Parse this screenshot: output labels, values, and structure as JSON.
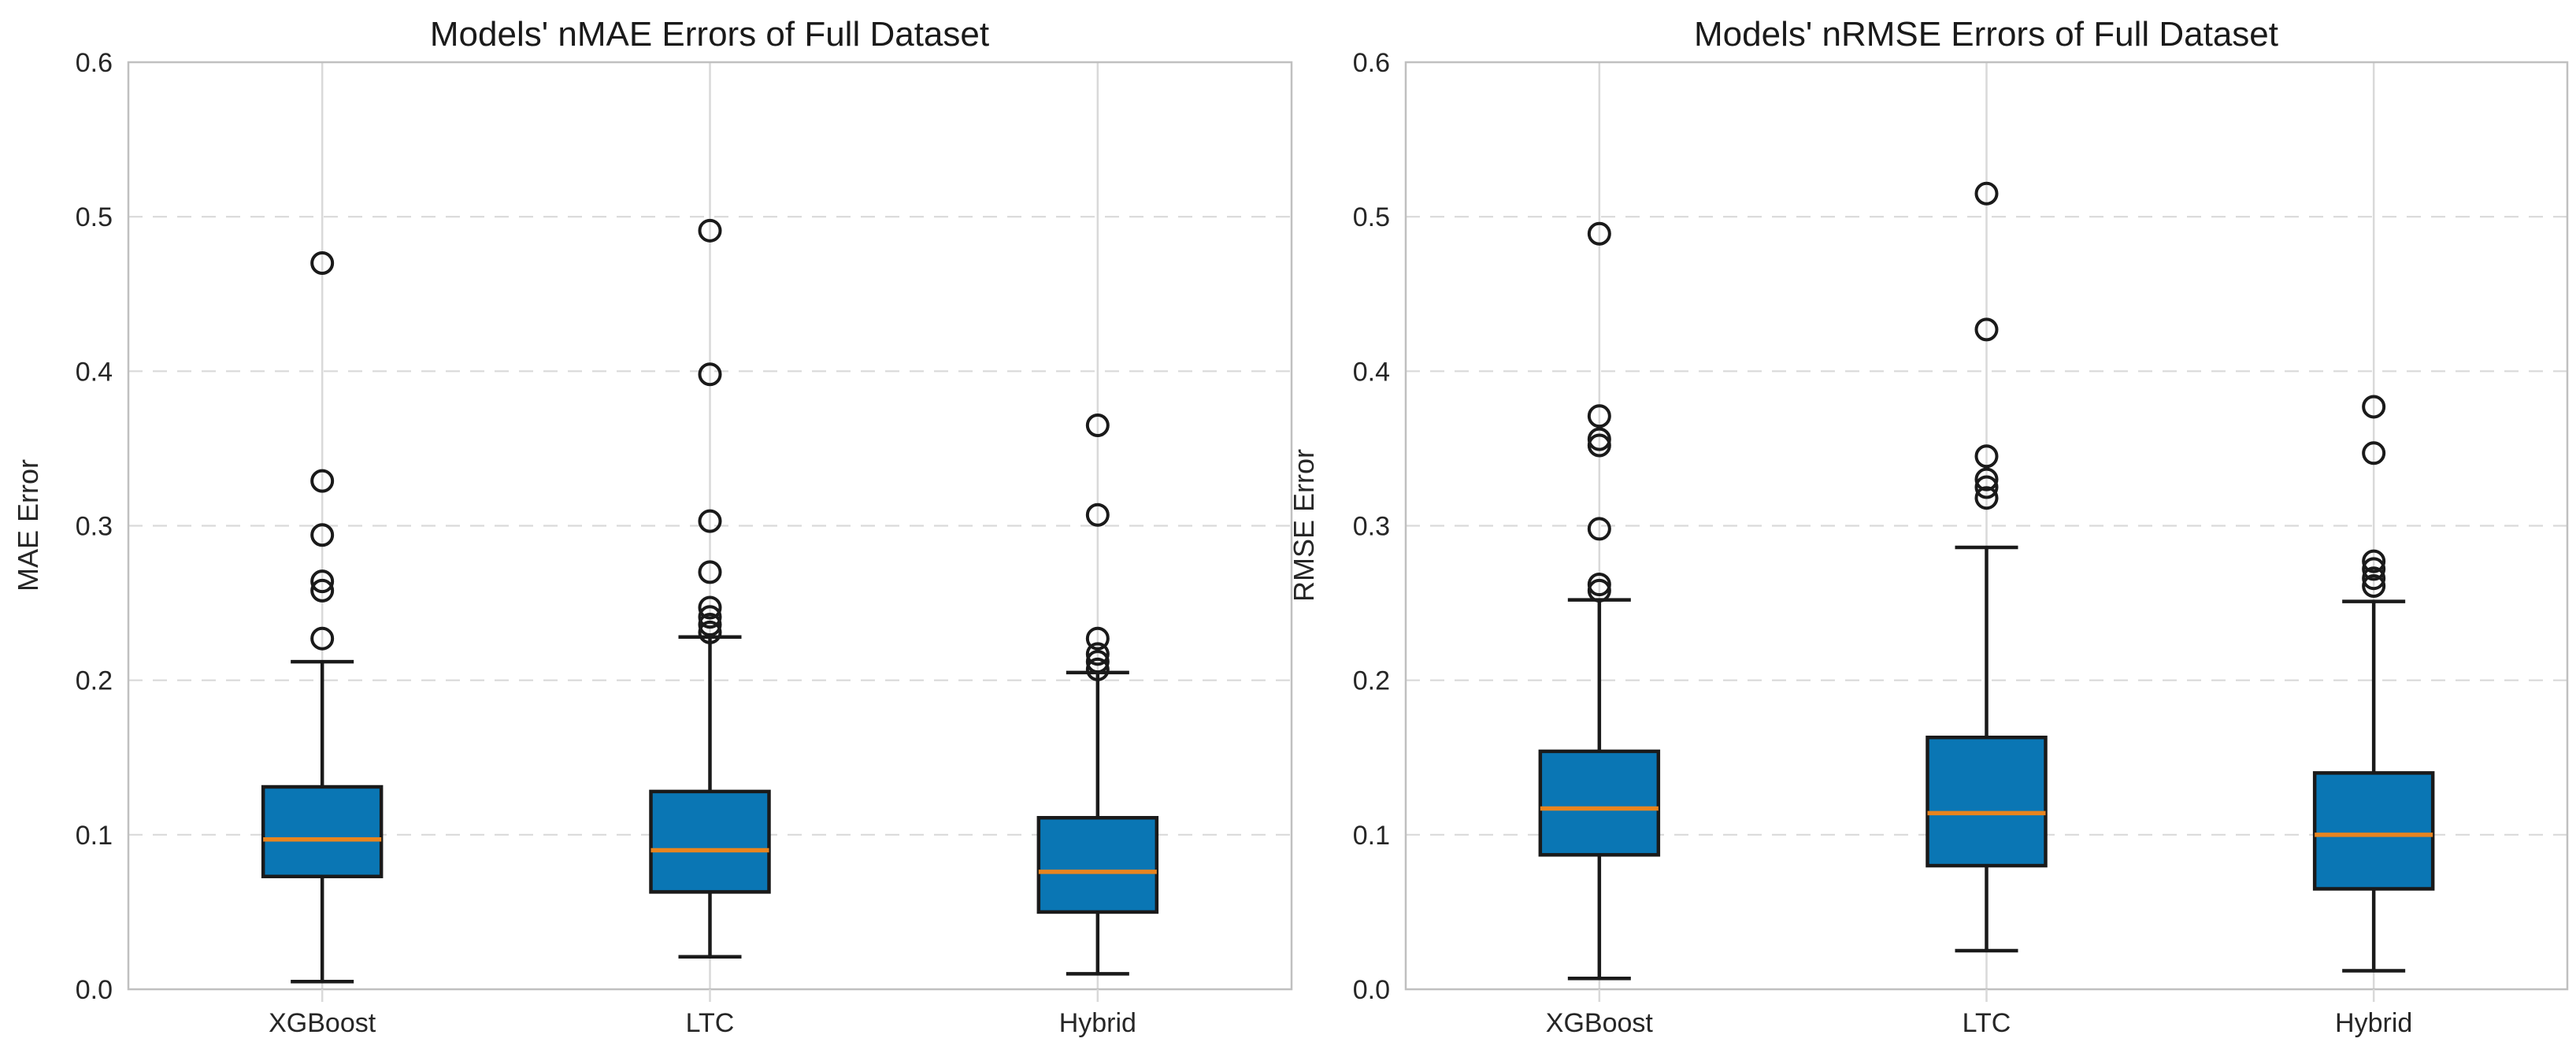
{
  "figure": {
    "background": "#ffffff"
  },
  "style_colors": {
    "box_fill": "#0a76b4",
    "median": "#e8841f",
    "line": "#1a1a1a",
    "grid": "#d9d9d9",
    "spine": "#c0c0c0",
    "tick_text": "#262626",
    "title_text": "#1a1a1a"
  },
  "chart_data": [
    {
      "type": "boxplot",
      "title": "Models' nMAE Errors of Full Dataset",
      "ylabel": "MAE Error",
      "xlabel": "",
      "categories": [
        "XGBoost",
        "LTC",
        "Hybrid"
      ],
      "ylim": [
        0.0,
        0.6
      ],
      "yticks": [
        0.0,
        0.1,
        0.2,
        0.3,
        0.4,
        0.5,
        0.6
      ],
      "ytick_labels": [
        "0.0",
        "0.1",
        "0.2",
        "0.3",
        "0.4",
        "0.5",
        "0.6"
      ],
      "grid": "horizontal dashed gridlines + solid vertical category lines",
      "legend": "none",
      "series": [
        {
          "name": "XGBoost",
          "whisker_low": 0.005,
          "q1": 0.073,
          "median": 0.097,
          "q3": 0.131,
          "whisker_high": 0.212,
          "outliers": [
            0.227,
            0.258,
            0.264,
            0.294,
            0.329,
            0.47
          ]
        },
        {
          "name": "LTC",
          "whisker_low": 0.021,
          "q1": 0.063,
          "median": 0.09,
          "q3": 0.128,
          "whisker_high": 0.228,
          "outliers": [
            0.231,
            0.236,
            0.241,
            0.247,
            0.27,
            0.303,
            0.398,
            0.491
          ]
        },
        {
          "name": "Hybrid",
          "whisker_low": 0.01,
          "q1": 0.05,
          "median": 0.076,
          "q3": 0.111,
          "whisker_high": 0.205,
          "outliers": [
            0.207,
            0.212,
            0.217,
            0.227,
            0.307,
            0.365
          ]
        }
      ]
    },
    {
      "type": "boxplot",
      "title": "Models' nRMSE Errors of Full Dataset",
      "ylabel": "RMSE Error",
      "xlabel": "",
      "categories": [
        "XGBoost",
        "LTC",
        "Hybrid"
      ],
      "ylim": [
        0.0,
        0.6
      ],
      "yticks": [
        0.0,
        0.1,
        0.2,
        0.3,
        0.4,
        0.5,
        0.6
      ],
      "ytick_labels": [
        "0.0",
        "0.1",
        "0.2",
        "0.3",
        "0.4",
        "0.5",
        "0.6"
      ],
      "grid": "horizontal dashed gridlines + solid vertical category lines",
      "legend": "none",
      "series": [
        {
          "name": "XGBoost",
          "whisker_low": 0.007,
          "q1": 0.087,
          "median": 0.117,
          "q3": 0.154,
          "whisker_high": 0.252,
          "outliers": [
            0.258,
            0.262,
            0.298,
            0.352,
            0.356,
            0.371,
            0.489
          ]
        },
        {
          "name": "LTC",
          "whisker_low": 0.025,
          "q1": 0.08,
          "median": 0.114,
          "q3": 0.163,
          "whisker_high": 0.286,
          "outliers": [
            0.318,
            0.325,
            0.33,
            0.345,
            0.427,
            0.515
          ]
        },
        {
          "name": "Hybrid",
          "whisker_low": 0.012,
          "q1": 0.065,
          "median": 0.1,
          "q3": 0.14,
          "whisker_high": 0.251,
          "outliers": [
            0.261,
            0.266,
            0.272,
            0.277,
            0.347,
            0.377
          ]
        }
      ]
    }
  ]
}
